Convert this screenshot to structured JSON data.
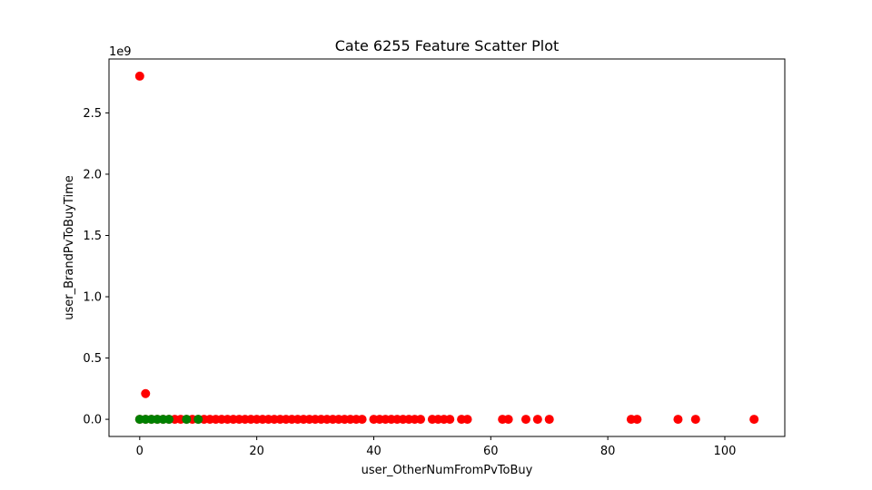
{
  "chart_data": {
    "type": "scatter",
    "title": "Cate 6255 Feature Scatter Plot",
    "xlabel": "user_OtherNumFromPvToBuy",
    "ylabel": "user_BrandPvToBuyTime",
    "y_offset_label": "1e9",
    "xlim": [
      -5.25,
      110.25
    ],
    "ylim": [
      -0.14,
      2.94
    ],
    "y_scale_factor": 1000000000,
    "x_ticks": [
      0,
      20,
      40,
      60,
      80,
      100
    ],
    "x_tick_labels": [
      "0",
      "20",
      "40",
      "60",
      "80",
      "100"
    ],
    "y_ticks": [
      0.0,
      0.5,
      1.0,
      1.5,
      2.0,
      2.5
    ],
    "y_tick_labels": [
      "0.0",
      "0.5",
      "1.0",
      "1.5",
      "2.0",
      "2.5"
    ],
    "grid": false,
    "colors": {
      "red_points": "#ff0000",
      "green_points": "#008000"
    },
    "series": [
      {
        "color": "#ff0000",
        "x": [
          0,
          1,
          0,
          1,
          2,
          3,
          4,
          5,
          6,
          7,
          8,
          9,
          10,
          11,
          12,
          13,
          14,
          15,
          16,
          17,
          18,
          19,
          20,
          21,
          22,
          23,
          24,
          25,
          26,
          27,
          28,
          29,
          30,
          31,
          32,
          33,
          34,
          35,
          36,
          37,
          38,
          40,
          41,
          42,
          43,
          44,
          45,
          46,
          47,
          48,
          50,
          51,
          52,
          53,
          55,
          56,
          62,
          63,
          66,
          68,
          70,
          84,
          85,
          92,
          95,
          105
        ],
        "y": [
          2.8,
          0.21,
          0,
          0,
          0,
          0,
          0,
          0,
          0,
          0,
          0,
          0,
          0,
          0,
          0,
          0,
          0,
          0,
          0,
          0,
          0,
          0,
          0,
          0,
          0,
          0,
          0,
          0,
          0,
          0,
          0,
          0,
          0,
          0,
          0,
          0,
          0,
          0,
          0,
          0,
          0,
          0,
          0,
          0,
          0,
          0,
          0,
          0,
          0,
          0,
          0,
          0,
          0,
          0,
          0,
          0,
          0,
          0,
          0,
          0,
          0,
          0,
          0,
          0,
          0,
          0
        ]
      },
      {
        "color": "#008000",
        "x": [
          0,
          1,
          2,
          3,
          4,
          5,
          8,
          10
        ],
        "y": [
          0,
          0,
          0,
          0,
          0,
          0,
          0,
          0
        ]
      }
    ]
  }
}
